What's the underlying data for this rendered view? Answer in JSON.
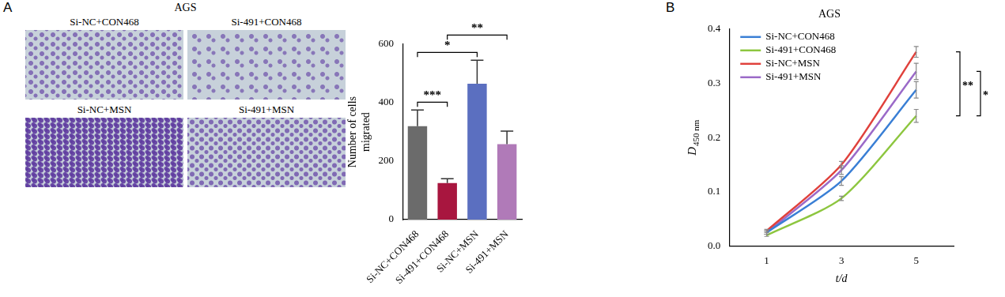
{
  "chart_data": [
    {
      "panel": "A",
      "panel_title": "AGS",
      "type": "bar",
      "images": [
        {
          "label": "Si-NC+CON468"
        },
        {
          "label": "Si-491+CON468"
        },
        {
          "label": "Si-NC+MSN"
        },
        {
          "label": "Si-491+MSN"
        }
      ],
      "y_label": "Number of cells migrated",
      "categories": [
        "Si-NC+CON468",
        "Si-491+CON468",
        "Si-NC+MSN",
        "Si-491+MSN"
      ],
      "values": [
        320,
        125,
        465,
        258
      ],
      "errors": [
        55,
        15,
        80,
        45
      ],
      "colors": [
        "#6b6b6b",
        "#a8163f",
        "#5b6fc0",
        "#b07ab8"
      ],
      "ylim": [
        0,
        600
      ],
      "yticks": [
        0,
        200,
        400,
        600
      ],
      "grid": false,
      "significance": [
        {
          "groups": [
            0,
            1
          ],
          "label": "***"
        },
        {
          "groups": [
            0,
            2
          ],
          "label": "*"
        },
        {
          "groups": [
            1,
            3
          ],
          "label": "**"
        }
      ]
    },
    {
      "panel": "B",
      "type": "line",
      "title": "AGS",
      "x_label": "t/d",
      "y_label": "D",
      "y_label_subscript": "450 nm",
      "x": [
        1,
        3,
        5
      ],
      "xlim": [
        0,
        6
      ],
      "xticks": [
        1,
        3,
        5
      ],
      "ylim": [
        0,
        0.4
      ],
      "yticks": [
        {
          "value": 0,
          "label": "0.0"
        },
        {
          "value": 0.1,
          "label": "0.1"
        },
        {
          "value": 0.2,
          "label": "0.2"
        },
        {
          "value": 0.3,
          "label": "0.3"
        },
        {
          "value": 0.4,
          "label": "0.4"
        }
      ],
      "grid": false,
      "legend": "upper left",
      "series": [
        {
          "name": "Si-NC+CON468",
          "color": "#3a7fd5",
          "values": [
            0.025,
            0.12,
            0.288
          ],
          "errors": [
            0.003,
            0.008,
            0.015
          ]
        },
        {
          "name": "Si-491+CON468",
          "color": "#8dc63f",
          "values": [
            0.02,
            0.088,
            0.24
          ],
          "errors": [
            0.002,
            0.004,
            0.012
          ]
        },
        {
          "name": "Si-NC+MSN",
          "color": "#e0413c",
          "values": [
            0.028,
            0.15,
            0.358
          ],
          "errors": [
            0.003,
            0.006,
            0.01
          ]
        },
        {
          "name": "Si-491+MSN",
          "color": "#9b6ac8",
          "values": [
            0.025,
            0.14,
            0.322
          ],
          "errors": [
            0.003,
            0.008,
            0.015
          ]
        }
      ],
      "significance": [
        {
          "series": [
            2,
            1
          ],
          "label": "**"
        },
        {
          "series": [
            3,
            1
          ],
          "label": "*"
        }
      ]
    }
  ]
}
